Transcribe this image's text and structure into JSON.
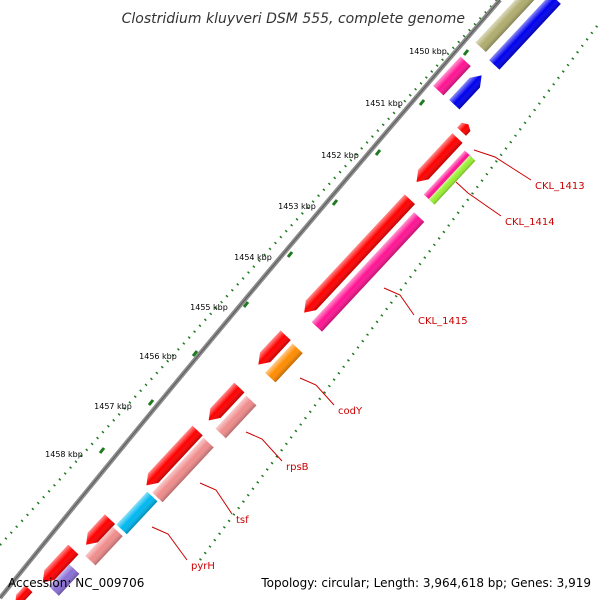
{
  "title": "Clostridium kluyveri DSM 555, complete genome",
  "accession": "Accession: NC_009706",
  "summary": "Topology: circular; Length: 3,964,618 bp; Genes: 3,919",
  "colors": {
    "backbone": "#8c8c8c",
    "ticks": "#1f7a1f",
    "label": "#cc0000",
    "red": "#ff0000",
    "magenta": "#ff1493",
    "lime": "#99ee33",
    "orange": "#ff8c00",
    "salmon": "#f08c8c",
    "cyan": "#00b8f0",
    "blue": "#0000ee",
    "olive": "#b0ad6e",
    "violet": "#8a6fd6"
  },
  "scale": {
    "ticks": [
      {
        "label": "1450 kbp"
      },
      {
        "label": "1451 kbp"
      },
      {
        "label": "1452 kbp"
      },
      {
        "label": "1453 kbp"
      },
      {
        "label": "1454 kbp"
      },
      {
        "label": "1455 kbp"
      },
      {
        "label": "1456 kbp"
      },
      {
        "label": "1457 kbp"
      },
      {
        "label": "1458 kbp"
      }
    ]
  },
  "gene_labels": [
    {
      "label": "CKL_1413"
    },
    {
      "label": "CKL_1414"
    },
    {
      "label": "CKL_1415"
    },
    {
      "label": "codY"
    },
    {
      "label": "rpsB"
    },
    {
      "label": "tsf"
    },
    {
      "label": "pyrH"
    }
  ]
}
